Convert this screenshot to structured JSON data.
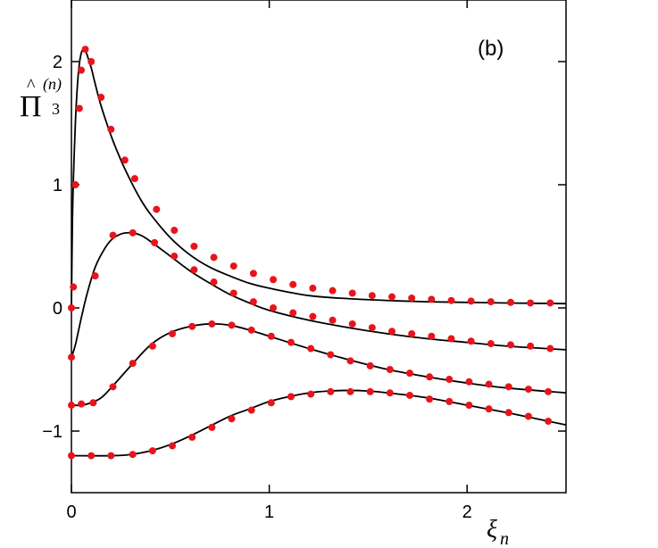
{
  "chart_data": {
    "type": "line",
    "panel_label": "(b)",
    "ylabel": {
      "hat": "^",
      "symbol": "Π",
      "superscript": "(n)",
      "subscript": "3"
    },
    "xlabel": {
      "symbol": "ξ",
      "subscript": "n"
    },
    "xlim": [
      0,
      2.5
    ],
    "ylim": [
      -1.5,
      2.5
    ],
    "xticks": [
      0,
      1,
      2
    ],
    "xtick_labels": [
      "0",
      "1",
      "2"
    ],
    "yticks": [
      -1,
      0,
      1,
      2
    ],
    "ytick_labels": [
      "−1",
      "0",
      "1",
      "2"
    ],
    "line_color": "#000000",
    "marker_color": "#e8141c",
    "series": [
      {
        "curve": [
          [
            0,
            0
          ],
          [
            0.005,
            0.7
          ],
          [
            0.01,
            1.05
          ],
          [
            0.02,
            1.5
          ],
          [
            0.03,
            1.8
          ],
          [
            0.04,
            1.98
          ],
          [
            0.05,
            2.07
          ],
          [
            0.06,
            2.1
          ],
          [
            0.07,
            2.09
          ],
          [
            0.08,
            2.05
          ],
          [
            0.1,
            1.95
          ],
          [
            0.12,
            1.82
          ],
          [
            0.15,
            1.64
          ],
          [
            0.2,
            1.4
          ],
          [
            0.25,
            1.2
          ],
          [
            0.3,
            1.03
          ],
          [
            0.35,
            0.88
          ],
          [
            0.4,
            0.76
          ],
          [
            0.5,
            0.57
          ],
          [
            0.6,
            0.43
          ],
          [
            0.7,
            0.33
          ],
          [
            0.8,
            0.26
          ],
          [
            0.9,
            0.2
          ],
          [
            1.0,
            0.16
          ],
          [
            1.2,
            0.1
          ],
          [
            1.4,
            0.075
          ],
          [
            1.6,
            0.06
          ],
          [
            1.8,
            0.05
          ],
          [
            2.0,
            0.045
          ],
          [
            2.2,
            0.04
          ],
          [
            2.5,
            0.035
          ]
        ],
        "points": [
          [
            0,
            0
          ],
          [
            0.02,
            1.0
          ],
          [
            0.04,
            1.62
          ],
          [
            0.05,
            1.93
          ],
          [
            0.07,
            2.1
          ],
          [
            0.1,
            2.0
          ],
          [
            0.15,
            1.71
          ],
          [
            0.2,
            1.45
          ],
          [
            0.27,
            1.2
          ],
          [
            0.32,
            1.05
          ],
          [
            0.43,
            0.8
          ],
          [
            0.52,
            0.63
          ],
          [
            0.62,
            0.5
          ],
          [
            0.72,
            0.41
          ],
          [
            0.82,
            0.34
          ],
          [
            0.92,
            0.28
          ],
          [
            1.02,
            0.23
          ],
          [
            1.12,
            0.19
          ],
          [
            1.22,
            0.16
          ],
          [
            1.32,
            0.14
          ],
          [
            1.42,
            0.12
          ],
          [
            1.52,
            0.1
          ],
          [
            1.62,
            0.09
          ],
          [
            1.72,
            0.08
          ],
          [
            1.82,
            0.07
          ],
          [
            1.92,
            0.06
          ],
          [
            2.02,
            0.055
          ],
          [
            2.12,
            0.05
          ],
          [
            2.22,
            0.045
          ],
          [
            2.32,
            0.04
          ],
          [
            2.42,
            0.04
          ]
        ]
      },
      {
        "curve": [
          [
            0,
            -0.4
          ],
          [
            0.02,
            -0.3
          ],
          [
            0.05,
            -0.08
          ],
          [
            0.08,
            0.12
          ],
          [
            0.12,
            0.33
          ],
          [
            0.16,
            0.46
          ],
          [
            0.2,
            0.55
          ],
          [
            0.25,
            0.6
          ],
          [
            0.3,
            0.61
          ],
          [
            0.35,
            0.59
          ],
          [
            0.4,
            0.54
          ],
          [
            0.5,
            0.42
          ],
          [
            0.6,
            0.3
          ],
          [
            0.7,
            0.2
          ],
          [
            0.8,
            0.11
          ],
          [
            0.9,
            0.04
          ],
          [
            1.0,
            -0.02
          ],
          [
            1.2,
            -0.1
          ],
          [
            1.4,
            -0.16
          ],
          [
            1.6,
            -0.21
          ],
          [
            1.8,
            -0.25
          ],
          [
            2.0,
            -0.28
          ],
          [
            2.2,
            -0.31
          ],
          [
            2.5,
            -0.34
          ]
        ],
        "points": [
          [
            0,
            -0.4
          ],
          [
            0.01,
            0.17
          ],
          [
            0.12,
            0.26
          ],
          [
            0.21,
            0.59
          ],
          [
            0.31,
            0.61
          ],
          [
            0.42,
            0.53
          ],
          [
            0.52,
            0.42
          ],
          [
            0.62,
            0.31
          ],
          [
            0.72,
            0.21
          ],
          [
            0.82,
            0.12
          ],
          [
            0.92,
            0.05
          ],
          [
            1.02,
            0
          ],
          [
            1.12,
            -0.04
          ],
          [
            1.22,
            -0.07
          ],
          [
            1.32,
            -0.1
          ],
          [
            1.42,
            -0.13
          ],
          [
            1.52,
            -0.16
          ],
          [
            1.62,
            -0.19
          ],
          [
            1.72,
            -0.21
          ],
          [
            1.82,
            -0.23
          ],
          [
            1.92,
            -0.25
          ],
          [
            2.02,
            -0.27
          ],
          [
            2.12,
            -0.29
          ],
          [
            2.22,
            -0.3
          ],
          [
            2.32,
            -0.31
          ],
          [
            2.42,
            -0.33
          ]
        ]
      },
      {
        "curve": [
          [
            0,
            -0.79
          ],
          [
            0.05,
            -0.79
          ],
          [
            0.1,
            -0.77
          ],
          [
            0.15,
            -0.73
          ],
          [
            0.2,
            -0.65
          ],
          [
            0.3,
            -0.47
          ],
          [
            0.4,
            -0.3
          ],
          [
            0.5,
            -0.2
          ],
          [
            0.6,
            -0.15
          ],
          [
            0.7,
            -0.13
          ],
          [
            0.8,
            -0.14
          ],
          [
            0.9,
            -0.18
          ],
          [
            1.0,
            -0.23
          ],
          [
            1.2,
            -0.33
          ],
          [
            1.4,
            -0.42
          ],
          [
            1.6,
            -0.5
          ],
          [
            1.8,
            -0.56
          ],
          [
            2.0,
            -0.61
          ],
          [
            2.2,
            -0.65
          ],
          [
            2.5,
            -0.69
          ]
        ],
        "points": [
          [
            0,
            -0.79
          ],
          [
            0.05,
            -0.78
          ],
          [
            0.11,
            -0.77
          ],
          [
            0.21,
            -0.64
          ],
          [
            0.31,
            -0.45
          ],
          [
            0.41,
            -0.31
          ],
          [
            0.51,
            -0.21
          ],
          [
            0.61,
            -0.15
          ],
          [
            0.71,
            -0.13
          ],
          [
            0.81,
            -0.14
          ],
          [
            0.91,
            -0.18
          ],
          [
            1.01,
            -0.23
          ],
          [
            1.11,
            -0.28
          ],
          [
            1.21,
            -0.33
          ],
          [
            1.31,
            -0.38
          ],
          [
            1.41,
            -0.43
          ],
          [
            1.51,
            -0.47
          ],
          [
            1.61,
            -0.5
          ],
          [
            1.71,
            -0.53
          ],
          [
            1.81,
            -0.56
          ],
          [
            1.91,
            -0.58
          ],
          [
            2.01,
            -0.6
          ],
          [
            2.11,
            -0.62
          ],
          [
            2.21,
            -0.64
          ],
          [
            2.31,
            -0.66
          ],
          [
            2.41,
            -0.68
          ]
        ]
      },
      {
        "curve": [
          [
            0,
            -1.2
          ],
          [
            0.2,
            -1.2
          ],
          [
            0.3,
            -1.19
          ],
          [
            0.4,
            -1.16
          ],
          [
            0.5,
            -1.11
          ],
          [
            0.6,
            -1.04
          ],
          [
            0.7,
            -0.96
          ],
          [
            0.8,
            -0.88
          ],
          [
            0.9,
            -0.82
          ],
          [
            1.0,
            -0.76
          ],
          [
            1.1,
            -0.72
          ],
          [
            1.2,
            -0.69
          ],
          [
            1.3,
            -0.675
          ],
          [
            1.4,
            -0.67
          ],
          [
            1.5,
            -0.675
          ],
          [
            1.6,
            -0.69
          ],
          [
            1.8,
            -0.73
          ],
          [
            2.0,
            -0.79
          ],
          [
            2.2,
            -0.85
          ],
          [
            2.5,
            -0.95
          ]
        ],
        "points": [
          [
            0,
            -1.2
          ],
          [
            0.1,
            -1.2
          ],
          [
            0.2,
            -1.2
          ],
          [
            0.31,
            -1.19
          ],
          [
            0.41,
            -1.16
          ],
          [
            0.51,
            -1.12
          ],
          [
            0.61,
            -1.05
          ],
          [
            0.71,
            -0.97
          ],
          [
            0.81,
            -0.9
          ],
          [
            0.91,
            -0.83
          ],
          [
            1.01,
            -0.77
          ],
          [
            1.11,
            -0.72
          ],
          [
            1.21,
            -0.7
          ],
          [
            1.31,
            -0.68
          ],
          [
            1.41,
            -0.68
          ],
          [
            1.51,
            -0.68
          ],
          [
            1.61,
            -0.69
          ],
          [
            1.71,
            -0.71
          ],
          [
            1.81,
            -0.74
          ],
          [
            1.91,
            -0.76
          ],
          [
            2.01,
            -0.79
          ],
          [
            2.11,
            -0.82
          ],
          [
            2.21,
            -0.85
          ],
          [
            2.31,
            -0.88
          ],
          [
            2.41,
            -0.92
          ]
        ]
      }
    ]
  }
}
